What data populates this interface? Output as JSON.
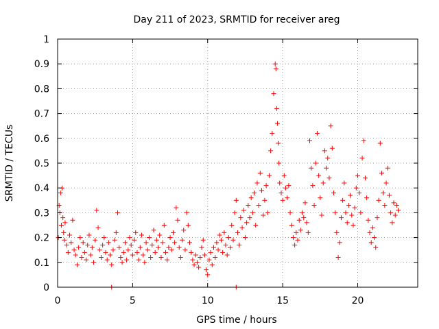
{
  "chart_data": {
    "type": "scatter",
    "title": "Day 211 of 2023, SRMTID for receiver areg",
    "xlabel": "GPS time / hours",
    "ylabel": "SRMTID / TECUs",
    "xlim": [
      0,
      24
    ],
    "ylim": [
      0,
      1
    ],
    "xticks": [
      0,
      5,
      10,
      15,
      20
    ],
    "xtick_labels": [
      "0",
      "5",
      "10",
      "15",
      "20"
    ],
    "yticks": [
      0,
      0.1,
      0.2,
      0.3,
      0.4,
      0.5,
      0.6,
      0.7,
      0.8,
      0.9,
      1
    ],
    "ytick_labels": [
      "0",
      "0.1",
      "0.2",
      "0.3",
      "0.4",
      "0.5",
      "0.6",
      "0.7",
      "0.8",
      "0.9",
      "1"
    ],
    "grid": true,
    "marker": "+",
    "color": "#ff0000",
    "series": [
      {
        "name": "SRMTID",
        "points": [
          [
            0.05,
            0.2
          ],
          [
            0.1,
            0.33
          ],
          [
            0.15,
            0.3
          ],
          [
            0.2,
            0.38
          ],
          [
            0.25,
            0.25
          ],
          [
            0.3,
            0.4
          ],
          [
            0.35,
            0.28
          ],
          [
            0.4,
            0.22
          ],
          [
            0.45,
            0.19
          ],
          [
            0.5,
            0.26
          ],
          [
            0.6,
            0.17
          ],
          [
            0.7,
            0.14
          ],
          [
            0.8,
            0.21
          ],
          [
            0.9,
            0.18
          ],
          [
            1.0,
            0.27
          ],
          [
            1.1,
            0.15
          ],
          [
            1.2,
            0.13
          ],
          [
            1.3,
            0.09
          ],
          [
            1.4,
            0.16
          ],
          [
            1.5,
            0.2
          ],
          [
            1.6,
            0.12
          ],
          [
            1.7,
            0.18
          ],
          [
            1.8,
            0.14
          ],
          [
            1.9,
            0.11
          ],
          [
            2.0,
            0.17
          ],
          [
            2.1,
            0.21
          ],
          [
            2.2,
            0.13
          ],
          [
            2.3,
            0.16
          ],
          [
            2.4,
            0.1
          ],
          [
            2.5,
            0.19
          ],
          [
            2.6,
            0.31
          ],
          [
            2.7,
            0.24
          ],
          [
            2.8,
            0.15
          ],
          [
            2.9,
            0.12
          ],
          [
            3.0,
            0.17
          ],
          [
            3.1,
            0.2
          ],
          [
            3.2,
            0.14
          ],
          [
            3.3,
            0.11
          ],
          [
            3.4,
            0.18
          ],
          [
            3.5,
            0.13
          ],
          [
            3.6,
            0.09
          ],
          [
            3.7,
            0.15
          ],
          [
            3.8,
            0.19
          ],
          [
            3.9,
            0.22
          ],
          [
            4.0,
            0.3
          ],
          [
            4.1,
            0.16
          ],
          [
            4.2,
            0.12
          ],
          [
            4.3,
            0.1
          ],
          [
            4.4,
            0.14
          ],
          [
            4.5,
            0.18
          ],
          [
            4.6,
            0.11
          ],
          [
            4.7,
            0.15
          ],
          [
            4.8,
            0.2
          ],
          [
            4.9,
            0.17
          ],
          [
            5.0,
            0.13
          ],
          [
            5.1,
            0.19
          ],
          [
            5.2,
            0.22
          ],
          [
            5.3,
            0.14
          ],
          [
            5.4,
            0.11
          ],
          [
            5.5,
            0.16
          ],
          [
            5.6,
            0.21
          ],
          [
            5.7,
            0.13
          ],
          [
            5.8,
            0.1
          ],
          [
            5.9,
            0.18
          ],
          [
            6.0,
            0.15
          ],
          [
            6.1,
            0.2
          ],
          [
            6.2,
            0.12
          ],
          [
            6.3,
            0.17
          ],
          [
            6.4,
            0.23
          ],
          [
            6.5,
            0.14
          ],
          [
            6.6,
            0.19
          ],
          [
            6.7,
            0.16
          ],
          [
            6.8,
            0.21
          ],
          [
            6.9,
            0.12
          ],
          [
            7.0,
            0.18
          ],
          [
            7.1,
            0.25
          ],
          [
            7.2,
            0.14
          ],
          [
            7.3,
            0.11
          ],
          [
            7.4,
            0.16
          ],
          [
            7.5,
            0.2
          ],
          [
            7.6,
            0.15
          ],
          [
            7.7,
            0.22
          ],
          [
            7.8,
            0.18
          ],
          [
            7.9,
            0.32
          ],
          [
            8.0,
            0.27
          ],
          [
            8.1,
            0.16
          ],
          [
            8.2,
            0.12
          ],
          [
            8.3,
            0.19
          ],
          [
            8.4,
            0.23
          ],
          [
            8.5,
            0.15
          ],
          [
            8.6,
            0.3
          ],
          [
            8.7,
            0.25
          ],
          [
            8.8,
            0.18
          ],
          [
            8.9,
            0.14
          ],
          [
            9.0,
            0.11
          ],
          [
            9.1,
            0.09
          ],
          [
            9.2,
            0.13
          ],
          [
            9.3,
            0.1
          ],
          [
            9.4,
            0.08
          ],
          [
            9.5,
            0.12
          ],
          [
            9.6,
            0.16
          ],
          [
            9.7,
            0.19
          ],
          [
            9.8,
            0.13
          ],
          [
            9.9,
            0.07
          ],
          [
            10.0,
            0.05
          ],
          [
            10.1,
            0.11
          ],
          [
            10.2,
            0.14
          ],
          [
            10.3,
            0.09
          ],
          [
            10.4,
            0.16
          ],
          [
            10.5,
            0.12
          ],
          [
            10.6,
            0.18
          ],
          [
            10.7,
            0.15
          ],
          [
            10.8,
            0.21
          ],
          [
            10.9,
            0.19
          ],
          [
            11.0,
            0.14
          ],
          [
            11.1,
            0.22
          ],
          [
            11.2,
            0.17
          ],
          [
            11.3,
            0.13
          ],
          [
            11.4,
            0.2
          ],
          [
            11.5,
            0.16
          ],
          [
            11.6,
            0.25
          ],
          [
            11.7,
            0.19
          ],
          [
            11.8,
            0.3
          ],
          [
            11.9,
            0.35
          ],
          [
            12.0,
            0.22
          ],
          [
            12.1,
            0.17
          ],
          [
            12.2,
            0.28
          ],
          [
            12.3,
            0.24
          ],
          [
            12.4,
            0.31
          ],
          [
            12.5,
            0.2
          ],
          [
            12.6,
            0.26
          ],
          [
            12.7,
            0.33
          ],
          [
            12.8,
            0.28
          ],
          [
            12.9,
            0.36
          ],
          [
            13.0,
            0.3
          ],
          [
            13.1,
            0.38
          ],
          [
            13.2,
            0.25
          ],
          [
            13.3,
            0.42
          ],
          [
            13.4,
            0.33
          ],
          [
            13.5,
            0.46
          ],
          [
            13.6,
            0.39
          ],
          [
            13.7,
            0.29
          ],
          [
            13.8,
            0.35
          ],
          [
            13.9,
            0.41
          ],
          [
            14.0,
            0.3
          ],
          [
            14.1,
            0.45
          ],
          [
            14.2,
            0.55
          ],
          [
            14.3,
            0.62
          ],
          [
            14.4,
            0.78
          ],
          [
            14.5,
            0.9
          ],
          [
            14.55,
            0.88
          ],
          [
            14.6,
            0.72
          ],
          [
            14.65,
            0.66
          ],
          [
            14.7,
            0.58
          ],
          [
            14.75,
            0.5
          ],
          [
            14.8,
            0.42
          ],
          [
            14.9,
            0.38
          ],
          [
            15.0,
            0.35
          ],
          [
            15.1,
            0.45
          ],
          [
            15.2,
            0.4
          ],
          [
            15.3,
            0.36
          ],
          [
            15.4,
            0.41
          ],
          [
            15.5,
            0.3
          ],
          [
            15.6,
            0.25
          ],
          [
            15.7,
            0.2
          ],
          [
            15.8,
            0.17
          ],
          [
            15.9,
            0.22
          ],
          [
            16.0,
            0.19
          ],
          [
            16.1,
            0.27
          ],
          [
            16.2,
            0.23
          ],
          [
            16.3,
            0.3
          ],
          [
            16.4,
            0.28
          ],
          [
            16.5,
            0.34
          ],
          [
            16.6,
            0.26
          ],
          [
            16.7,
            0.22
          ],
          [
            16.8,
            0.59
          ],
          [
            16.9,
            0.48
          ],
          [
            17.0,
            0.41
          ],
          [
            17.1,
            0.33
          ],
          [
            17.2,
            0.5
          ],
          [
            17.3,
            0.62
          ],
          [
            17.4,
            0.45
          ],
          [
            17.5,
            0.36
          ],
          [
            17.6,
            0.29
          ],
          [
            17.7,
            0.42
          ],
          [
            17.8,
            0.55
          ],
          [
            17.9,
            0.48
          ],
          [
            18.0,
            0.52
          ],
          [
            18.1,
            0.44
          ],
          [
            18.2,
            0.65
          ],
          [
            18.3,
            0.56
          ],
          [
            18.4,
            0.38
          ],
          [
            18.5,
            0.3
          ],
          [
            18.6,
            0.22
          ],
          [
            18.7,
            0.12
          ],
          [
            18.8,
            0.18
          ],
          [
            18.9,
            0.28
          ],
          [
            19.0,
            0.35
          ],
          [
            19.1,
            0.42
          ],
          [
            19.2,
            0.3
          ],
          [
            19.3,
            0.26
          ],
          [
            19.4,
            0.33
          ],
          [
            19.5,
            0.37
          ],
          [
            19.6,
            0.29
          ],
          [
            19.7,
            0.25
          ],
          [
            19.8,
            0.32
          ],
          [
            19.9,
            0.4
          ],
          [
            20.0,
            0.45
          ],
          [
            20.1,
            0.38
          ],
          [
            20.2,
            0.3
          ],
          [
            20.3,
            0.52
          ],
          [
            20.4,
            0.59
          ],
          [
            20.5,
            0.44
          ],
          [
            20.6,
            0.36
          ],
          [
            20.7,
            0.27
          ],
          [
            20.8,
            0.22
          ],
          [
            20.9,
            0.18
          ],
          [
            21.0,
            0.24
          ],
          [
            21.1,
            0.2
          ],
          [
            21.2,
            0.16
          ],
          [
            21.3,
            0.28
          ],
          [
            21.4,
            0.35
          ],
          [
            21.5,
            0.58
          ],
          [
            21.6,
            0.46
          ],
          [
            21.7,
            0.38
          ],
          [
            21.8,
            0.33
          ],
          [
            21.9,
            0.42
          ],
          [
            22.0,
            0.48
          ],
          [
            22.1,
            0.37
          ],
          [
            22.2,
            0.3
          ],
          [
            22.3,
            0.26
          ],
          [
            22.4,
            0.34
          ],
          [
            22.5,
            0.29
          ],
          [
            22.6,
            0.33
          ],
          [
            22.7,
            0.31
          ],
          [
            3.6,
            0.0
          ],
          [
            11.9,
            0.0
          ]
        ]
      }
    ]
  }
}
